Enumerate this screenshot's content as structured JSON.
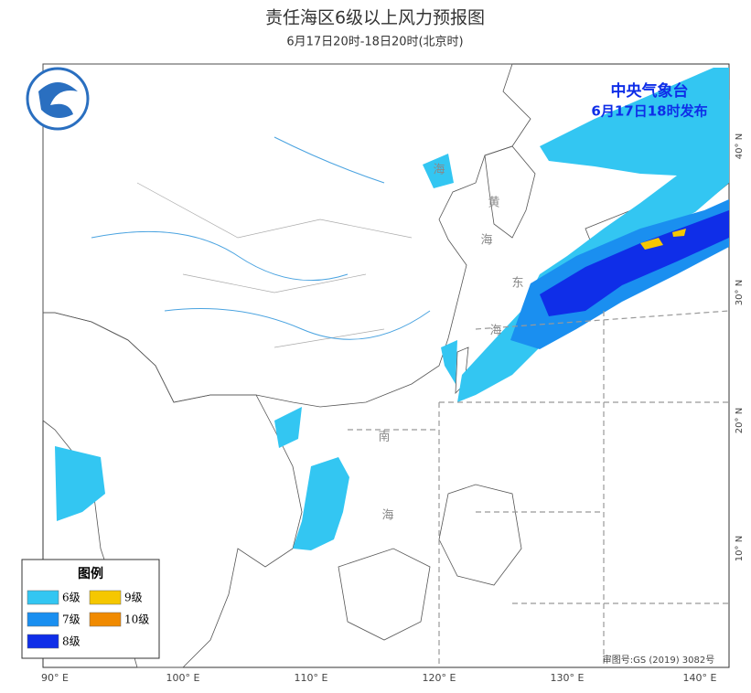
{
  "header": {
    "title": "责任海区6级以上风力预报图",
    "subtitle": "6月17日20时-18日20时(北京时)"
  },
  "issuer": {
    "name": "中央气象台",
    "time": "6月17日18时发布"
  },
  "map": {
    "lon_labels": [
      "90° E",
      "100° E",
      "110° E",
      "120° E",
      "130° E",
      "140° E"
    ],
    "lat_labels": [
      "40° N",
      "30° N",
      "20° N",
      "10° N"
    ],
    "sea_labels": [
      "黄",
      "海",
      "东",
      "海",
      "南",
      "海",
      "海"
    ],
    "approval": "审图号:GS (2019) 3082号"
  },
  "legend": {
    "title": "图例",
    "items": [
      {
        "label": "6级",
        "color": "#33c6f2"
      },
      {
        "label": "7级",
        "color": "#1a8ff0"
      },
      {
        "label": "8级",
        "color": "#0f2ee8"
      },
      {
        "label": "9级",
        "color": "#f5c700"
      },
      {
        "label": "10级",
        "color": "#f08a00"
      }
    ]
  }
}
